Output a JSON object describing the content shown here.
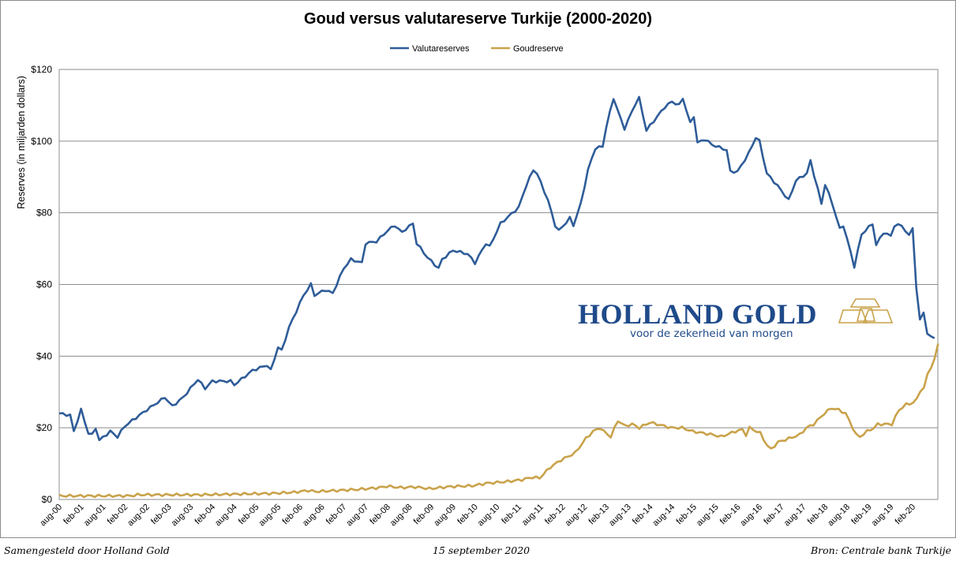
{
  "chart_data": {
    "type": "line",
    "title": "Goud versus valutareserve Turkije (2000-2020)",
    "xlabel": "",
    "ylabel": "Reserves (in miljarden dollars)",
    "ylim": [
      0,
      120
    ],
    "yticks": [
      "$0",
      "$20",
      "$40",
      "$60",
      "$80",
      "$100",
      "$120"
    ],
    "ytick_values": [
      0,
      20,
      40,
      60,
      80,
      100,
      120
    ],
    "x_unit": "months since aug-00",
    "xticks": [
      "aug-00",
      "feb-01",
      "aug-01",
      "feb-02",
      "aug-02",
      "feb-03",
      "aug-03",
      "feb-04",
      "aug-04",
      "feb-05",
      "aug-05",
      "feb-06",
      "aug-06",
      "feb-07",
      "aug-07",
      "feb-08",
      "aug-08",
      "feb-09",
      "aug-09",
      "feb-10",
      "aug-10",
      "feb-11",
      "aug-11",
      "feb-12",
      "aug-12",
      "feb-13",
      "aug-13",
      "feb-14",
      "aug-14",
      "feb-15",
      "aug-15",
      "feb-16",
      "aug-16",
      "feb-17",
      "aug-17",
      "feb-18",
      "aug-18",
      "feb-19",
      "aug-19",
      "feb-20"
    ],
    "grid": true,
    "legend_position": "top-center",
    "series": [
      {
        "name": "Valutareserves",
        "color": "#2e5c98",
        "points": [
          [
            0,
            24
          ],
          [
            3,
            23.5
          ],
          [
            4,
            19
          ],
          [
            6,
            25
          ],
          [
            8,
            18.5
          ],
          [
            9,
            18
          ],
          [
            10,
            20
          ],
          [
            11,
            16.5
          ],
          [
            14,
            19
          ],
          [
            16,
            17.5
          ],
          [
            18,
            20.5
          ],
          [
            20,
            22
          ],
          [
            24,
            25
          ],
          [
            29,
            28.5
          ],
          [
            31,
            26
          ],
          [
            34,
            28.5
          ],
          [
            38,
            33.5
          ],
          [
            40,
            31
          ],
          [
            42,
            33
          ],
          [
            47,
            33
          ],
          [
            48,
            32
          ],
          [
            53,
            36
          ],
          [
            57,
            37.5
          ],
          [
            58,
            36
          ],
          [
            60,
            42.5
          ],
          [
            61,
            41.5
          ],
          [
            63,
            48
          ],
          [
            67,
            57
          ],
          [
            69,
            60
          ],
          [
            70,
            57
          ],
          [
            73,
            58.5
          ],
          [
            75,
            57.5
          ],
          [
            78,
            64.5
          ],
          [
            80,
            67
          ],
          [
            83,
            66
          ],
          [
            84,
            71.5
          ],
          [
            87,
            72
          ],
          [
            90,
            75
          ],
          [
            92,
            76.5
          ],
          [
            94,
            74.5
          ],
          [
            95,
            75.5
          ],
          [
            97,
            77
          ],
          [
            98,
            71.5
          ],
          [
            101,
            67.5
          ],
          [
            104,
            64.5
          ],
          [
            105,
            67
          ],
          [
            108,
            69.5
          ],
          [
            112,
            68.5
          ],
          [
            114,
            66
          ],
          [
            117,
            71.5
          ],
          [
            118,
            70.5
          ],
          [
            121,
            77
          ],
          [
            126,
            81.5
          ],
          [
            128,
            87.5
          ],
          [
            130,
            92
          ],
          [
            131,
            91
          ],
          [
            134,
            83.5
          ],
          [
            136,
            76.5
          ],
          [
            137,
            75
          ],
          [
            140,
            78.5
          ],
          [
            141,
            76.5
          ],
          [
            143,
            82.5
          ],
          [
            145,
            92
          ],
          [
            147,
            98
          ],
          [
            149,
            98.5
          ],
          [
            150,
            104
          ],
          [
            152,
            112
          ],
          [
            154,
            106
          ],
          [
            155,
            103.5
          ],
          [
            158,
            110.5
          ],
          [
            159,
            112
          ],
          [
            161,
            103
          ],
          [
            166,
            109.5
          ],
          [
            168,
            111
          ],
          [
            170,
            110
          ],
          [
            171,
            112
          ],
          [
            173,
            105
          ],
          [
            174,
            107
          ],
          [
            175,
            99.5
          ],
          [
            177,
            100.5
          ],
          [
            179,
            99
          ],
          [
            183,
            97.5
          ],
          [
            184,
            91.5
          ],
          [
            186,
            91.5
          ],
          [
            189,
            96.5
          ],
          [
            191,
            101
          ],
          [
            192,
            100
          ],
          [
            194,
            91
          ],
          [
            197,
            87.5
          ],
          [
            200,
            83.5
          ],
          [
            202,
            89
          ],
          [
            205,
            91
          ],
          [
            206,
            94.5
          ],
          [
            209,
            82.5
          ],
          [
            210,
            88
          ],
          [
            212,
            82.5
          ],
          [
            214,
            75.5
          ],
          [
            215,
            76.5
          ],
          [
            217,
            69
          ],
          [
            218,
            65
          ],
          [
            220,
            74
          ],
          [
            223,
            77
          ],
          [
            224,
            71
          ],
          [
            226,
            74.5
          ],
          [
            228,
            73.5
          ],
          [
            229,
            76.5
          ],
          [
            231,
            76.5
          ],
          [
            233,
            73.5
          ],
          [
            234,
            76
          ],
          [
            235,
            59
          ],
          [
            236,
            50
          ],
          [
            237,
            52.5
          ],
          [
            238,
            46
          ],
          [
            240,
            45
          ]
        ]
      },
      {
        "name": "Goudreserve",
        "color": "#c9a24a",
        "points": [
          [
            0,
            1
          ],
          [
            20,
            1
          ],
          [
            22,
            1.3
          ],
          [
            40,
            1.3
          ],
          [
            50,
            1.5
          ],
          [
            60,
            1.7
          ],
          [
            66,
            2
          ],
          [
            70,
            2.5
          ],
          [
            72,
            2.2
          ],
          [
            84,
            2.8
          ],
          [
            90,
            3.3
          ],
          [
            92,
            3.7
          ],
          [
            96,
            3.3
          ],
          [
            100,
            3.5
          ],
          [
            104,
            3
          ],
          [
            110,
            3.6
          ],
          [
            116,
            3.8
          ],
          [
            120,
            4.5
          ],
          [
            126,
            5
          ],
          [
            130,
            5.5
          ],
          [
            133,
            6.2
          ],
          [
            135,
            6
          ],
          [
            138,
            9
          ],
          [
            141,
            11
          ],
          [
            143,
            12
          ],
          [
            145,
            13
          ],
          [
            148,
            17
          ],
          [
            150,
            19
          ],
          [
            152,
            20
          ],
          [
            153,
            19
          ],
          [
            155,
            17.5
          ],
          [
            157,
            22
          ],
          [
            159,
            20.5
          ],
          [
            161,
            21
          ],
          [
            163,
            20
          ],
          [
            166,
            21.5
          ],
          [
            170,
            20.5
          ],
          [
            172,
            20
          ],
          [
            175,
            20
          ],
          [
            178,
            19
          ],
          [
            181,
            18.5
          ],
          [
            184,
            18
          ],
          [
            186,
            17.5
          ],
          [
            190,
            19
          ],
          [
            192,
            19.5
          ],
          [
            193,
            18
          ],
          [
            194,
            20
          ],
          [
            197,
            18.5
          ],
          [
            199,
            15
          ],
          [
            200,
            14
          ],
          [
            202,
            16
          ],
          [
            205,
            17
          ],
          [
            208,
            18
          ],
          [
            210,
            20
          ],
          [
            212,
            21
          ],
          [
            215,
            24
          ],
          [
            217,
            25.5
          ],
          [
            219,
            25
          ],
          [
            221,
            24
          ],
          [
            222,
            22
          ],
          [
            224,
            18
          ],
          [
            225,
            17.5
          ],
          [
            227,
            19
          ],
          [
            229,
            20
          ],
          [
            230,
            21
          ],
          [
            232,
            21
          ],
          [
            234,
            21
          ],
          [
            235,
            23
          ],
          [
            236,
            25
          ],
          [
            238,
            26.5
          ],
          [
            240,
            27
          ],
          [
            241,
            28
          ],
          [
            242,
            30.5
          ],
          [
            243,
            31
          ],
          [
            244,
            35
          ],
          [
            246,
            39
          ],
          [
            247,
            43.5
          ]
        ]
      }
    ]
  },
  "footer": {
    "left": "Samengesteld door Holland Gold",
    "center": "15 september 2020",
    "right": "Bron: Centrale bank Turkije"
  },
  "logo": {
    "name": "HOLLAND GOLD",
    "tagline": "voor de zekerheid van morgen"
  }
}
